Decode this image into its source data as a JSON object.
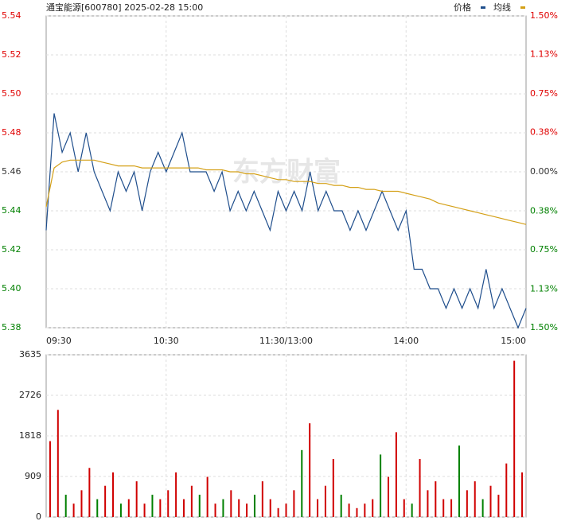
{
  "chart_data": [
    {
      "type": "line",
      "title": "通宝能源[600780] 2025-02-28 15:00",
      "watermark": "东方财富",
      "categories": [
        "09:30",
        null,
        null,
        null,
        null,
        null,
        null,
        null,
        null,
        null,
        null,
        null,
        null,
        null,
        null,
        "10:30",
        null,
        null,
        null,
        null,
        null,
        null,
        null,
        null,
        null,
        null,
        null,
        null,
        null,
        null,
        "11:30/13:00",
        null,
        null,
        null,
        null,
        null,
        null,
        null,
        null,
        null,
        null,
        null,
        null,
        null,
        null,
        "14:00",
        null,
        null,
        null,
        null,
        null,
        null,
        null,
        null,
        null,
        null,
        null,
        null,
        null,
        null,
        "15:00"
      ],
      "series": [
        {
          "name": "价格",
          "color": "#1f4e8c",
          "values": [
            5.43,
            5.49,
            5.47,
            5.48,
            5.46,
            5.48,
            5.46,
            5.45,
            5.44,
            5.46,
            5.45,
            5.46,
            5.44,
            5.46,
            5.47,
            5.46,
            5.47,
            5.48,
            5.46,
            5.46,
            5.46,
            5.45,
            5.46,
            5.44,
            5.45,
            5.44,
            5.45,
            5.44,
            5.43,
            5.45,
            5.44,
            5.45,
            5.44,
            5.46,
            5.44,
            5.45,
            5.44,
            5.44,
            5.43,
            5.44,
            5.43,
            5.44,
            5.45,
            5.44,
            5.43,
            5.44,
            5.41,
            5.41,
            5.4,
            5.4,
            5.39,
            5.4,
            5.39,
            5.4,
            5.39,
            5.41,
            5.39,
            5.4,
            5.39,
            5.38,
            5.39
          ]
        },
        {
          "name": "均线",
          "color": "#d4a017",
          "values": [
            5.442,
            5.462,
            5.465,
            5.466,
            5.466,
            5.466,
            5.466,
            5.465,
            5.464,
            5.463,
            5.463,
            5.463,
            5.462,
            5.462,
            5.462,
            5.462,
            5.462,
            5.462,
            5.462,
            5.462,
            5.461,
            5.461,
            5.461,
            5.46,
            5.46,
            5.459,
            5.459,
            5.458,
            5.457,
            5.456,
            5.456,
            5.455,
            5.455,
            5.455,
            5.454,
            5.454,
            5.453,
            5.453,
            5.452,
            5.452,
            5.451,
            5.451,
            5.45,
            5.45,
            5.45,
            5.449,
            5.448,
            5.447,
            5.446,
            5.444,
            5.443,
            5.442,
            5.441,
            5.44,
            5.439,
            5.438,
            5.437,
            5.436,
            5.435,
            5.434,
            5.433
          ]
        }
      ],
      "ylim": [
        5.38,
        5.54
      ],
      "yticks": [
        5.38,
        {
          "value": 5.4,
          "label": "5.40"
        },
        5.42,
        5.44,
        5.46,
        5.48,
        {
          "value": 5.5,
          "label": "5.50"
        },
        5.52,
        5.54
      ],
      "y2lim": [
        -1.5,
        1.5
      ],
      "y2ticks": [
        {
          "value": -1.5,
          "label": "1.50%"
        },
        {
          "value": -1.13,
          "label": "1.13%"
        },
        {
          "value": -0.75,
          "label": "0.75%"
        },
        {
          "value": -0.38,
          "label": "0.38%"
        },
        {
          "value": 0,
          "label": "0.00%"
        },
        {
          "value": 0.38,
          "label": "0.38%"
        },
        {
          "value": 0.75,
          "label": "0.75%"
        },
        {
          "value": 1.13,
          "label": "1.13%"
        },
        {
          "value": 1.5,
          "label": "1.50%"
        }
      ],
      "grid": true
    },
    {
      "type": "bar",
      "values": [
        1700,
        2400,
        500,
        300,
        600,
        1100,
        400,
        700,
        1000,
        300,
        400,
        800,
        300,
        500,
        400,
        600,
        1000,
        400,
        700,
        500,
        900,
        300,
        400,
        600,
        400,
        300,
        500,
        800,
        400,
        200,
        300,
        600,
        1500,
        2100,
        400,
        700,
        1300,
        500,
        300,
        200,
        300,
        400,
        1400,
        900,
        1900,
        400,
        300,
        1300,
        600,
        800,
        400,
        400,
        1600,
        600,
        800,
        400,
        700,
        500,
        1200,
        3500,
        1000
      ],
      "colors": [
        "#d00000",
        "#d00000",
        "#008000",
        "#d00000",
        "#d00000",
        "#d00000",
        "#008000",
        "#d00000",
        "#d00000",
        "#008000",
        "#d00000",
        "#d00000",
        "#d00000",
        "#008000",
        "#d00000",
        "#d00000",
        "#d00000",
        "#d00000",
        "#d00000",
        "#008000",
        "#d00000",
        "#d00000",
        "#008000",
        "#d00000",
        "#d00000",
        "#d00000",
        "#008000",
        "#d00000",
        "#d00000",
        "#d00000",
        "#d00000",
        "#d00000",
        "#008000",
        "#d00000",
        "#d00000",
        "#d00000",
        "#d00000",
        "#008000",
        "#d00000",
        "#d00000",
        "#d00000",
        "#d00000",
        "#008000",
        "#d00000",
        "#d00000",
        "#d00000",
        "#008000",
        "#d00000",
        "#d00000",
        "#d00000",
        "#d00000",
        "#d00000",
        "#008000",
        "#d00000",
        "#d00000",
        "#008000",
        "#d00000",
        "#d00000",
        "#d00000",
        "#d00000",
        "#d00000"
      ],
      "ylim": [
        0,
        3635
      ],
      "yticks": [
        0,
        909,
        1818,
        2726,
        3635
      ],
      "grid": true
    }
  ]
}
